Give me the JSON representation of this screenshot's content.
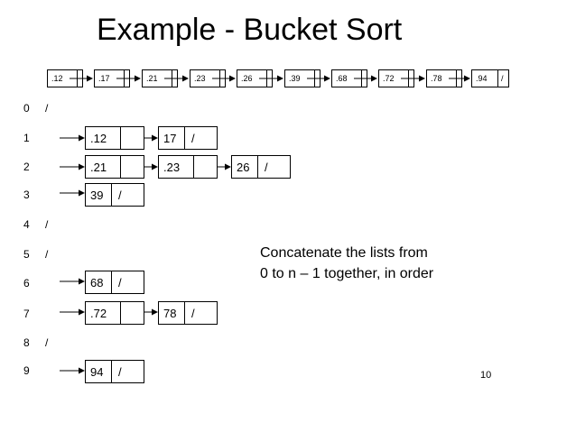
{
  "title": "Example - Bucket Sort",
  "input_array": [
    ".12",
    ".17",
    ".21",
    ".23",
    ".26",
    ".39",
    ".68",
    ".72",
    ".78",
    ".94"
  ],
  "input_terminator": "/",
  "buckets": [
    {
      "index": "0",
      "items": [],
      "empty_marker": "/"
    },
    {
      "index": "1",
      "items": [
        ".12",
        "17"
      ],
      "terminator": "/"
    },
    {
      "index": "2",
      "items": [
        ".21",
        ".23",
        "26"
      ],
      "terminator": "/"
    },
    {
      "index": "3",
      "items": [
        "39"
      ],
      "terminator": "/"
    },
    {
      "index": "4",
      "items": [],
      "empty_marker": "/"
    },
    {
      "index": "5",
      "items": [],
      "empty_marker": "/"
    },
    {
      "index": "6",
      "items": [
        "68"
      ],
      "terminator": "/"
    },
    {
      "index": "7",
      "items": [
        ".72",
        "78"
      ],
      "terminator": "/"
    },
    {
      "index": "8",
      "items": [],
      "empty_marker": "/"
    },
    {
      "index": "9",
      "items": [
        "94"
      ],
      "terminator": "/"
    }
  ],
  "caption": {
    "line1": "Concatenate the lists from",
    "line2": "0 to n – 1 together, in order"
  },
  "page_number": "10"
}
